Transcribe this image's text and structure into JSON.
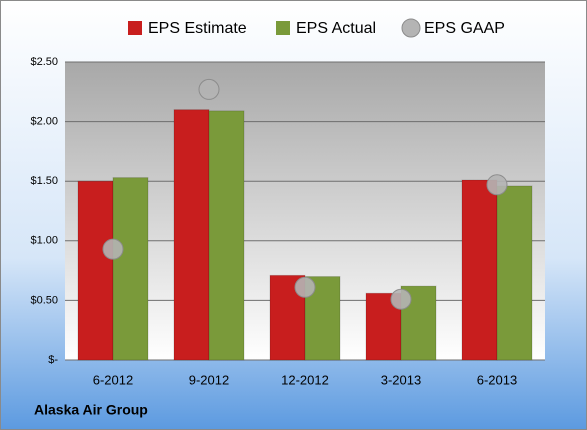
{
  "chart_data": {
    "type": "bar",
    "categories": [
      "6-2012",
      "9-2012",
      "12-2012",
      "3-2013",
      "6-2013"
    ],
    "series": [
      {
        "name": "EPS Estimate",
        "color": "#c81e1e",
        "values": [
          1.5,
          2.1,
          0.71,
          0.56,
          1.51
        ]
      },
      {
        "name": "EPS Actual",
        "color": "#7a9a3a",
        "values": [
          1.53,
          2.09,
          0.7,
          0.62,
          1.46
        ]
      },
      {
        "name": "EPS GAAP",
        "color": "#b4b4b4",
        "type": "scatter",
        "values": [
          0.93,
          2.27,
          0.61,
          0.51,
          1.47
        ]
      }
    ],
    "ylim": [
      0,
      2.5
    ],
    "yticks": [
      {
        "value": 0,
        "label": "$-"
      },
      {
        "value": 0.5,
        "label": "$0.50"
      },
      {
        "value": 1,
        "label": "$1.00"
      },
      {
        "value": 1.5,
        "label": "$1.50"
      },
      {
        "value": 2,
        "label": "$2.00"
      },
      {
        "value": 2.5,
        "label": "$2.50"
      }
    ],
    "grid": true,
    "footer": "Alaska Air Group"
  }
}
